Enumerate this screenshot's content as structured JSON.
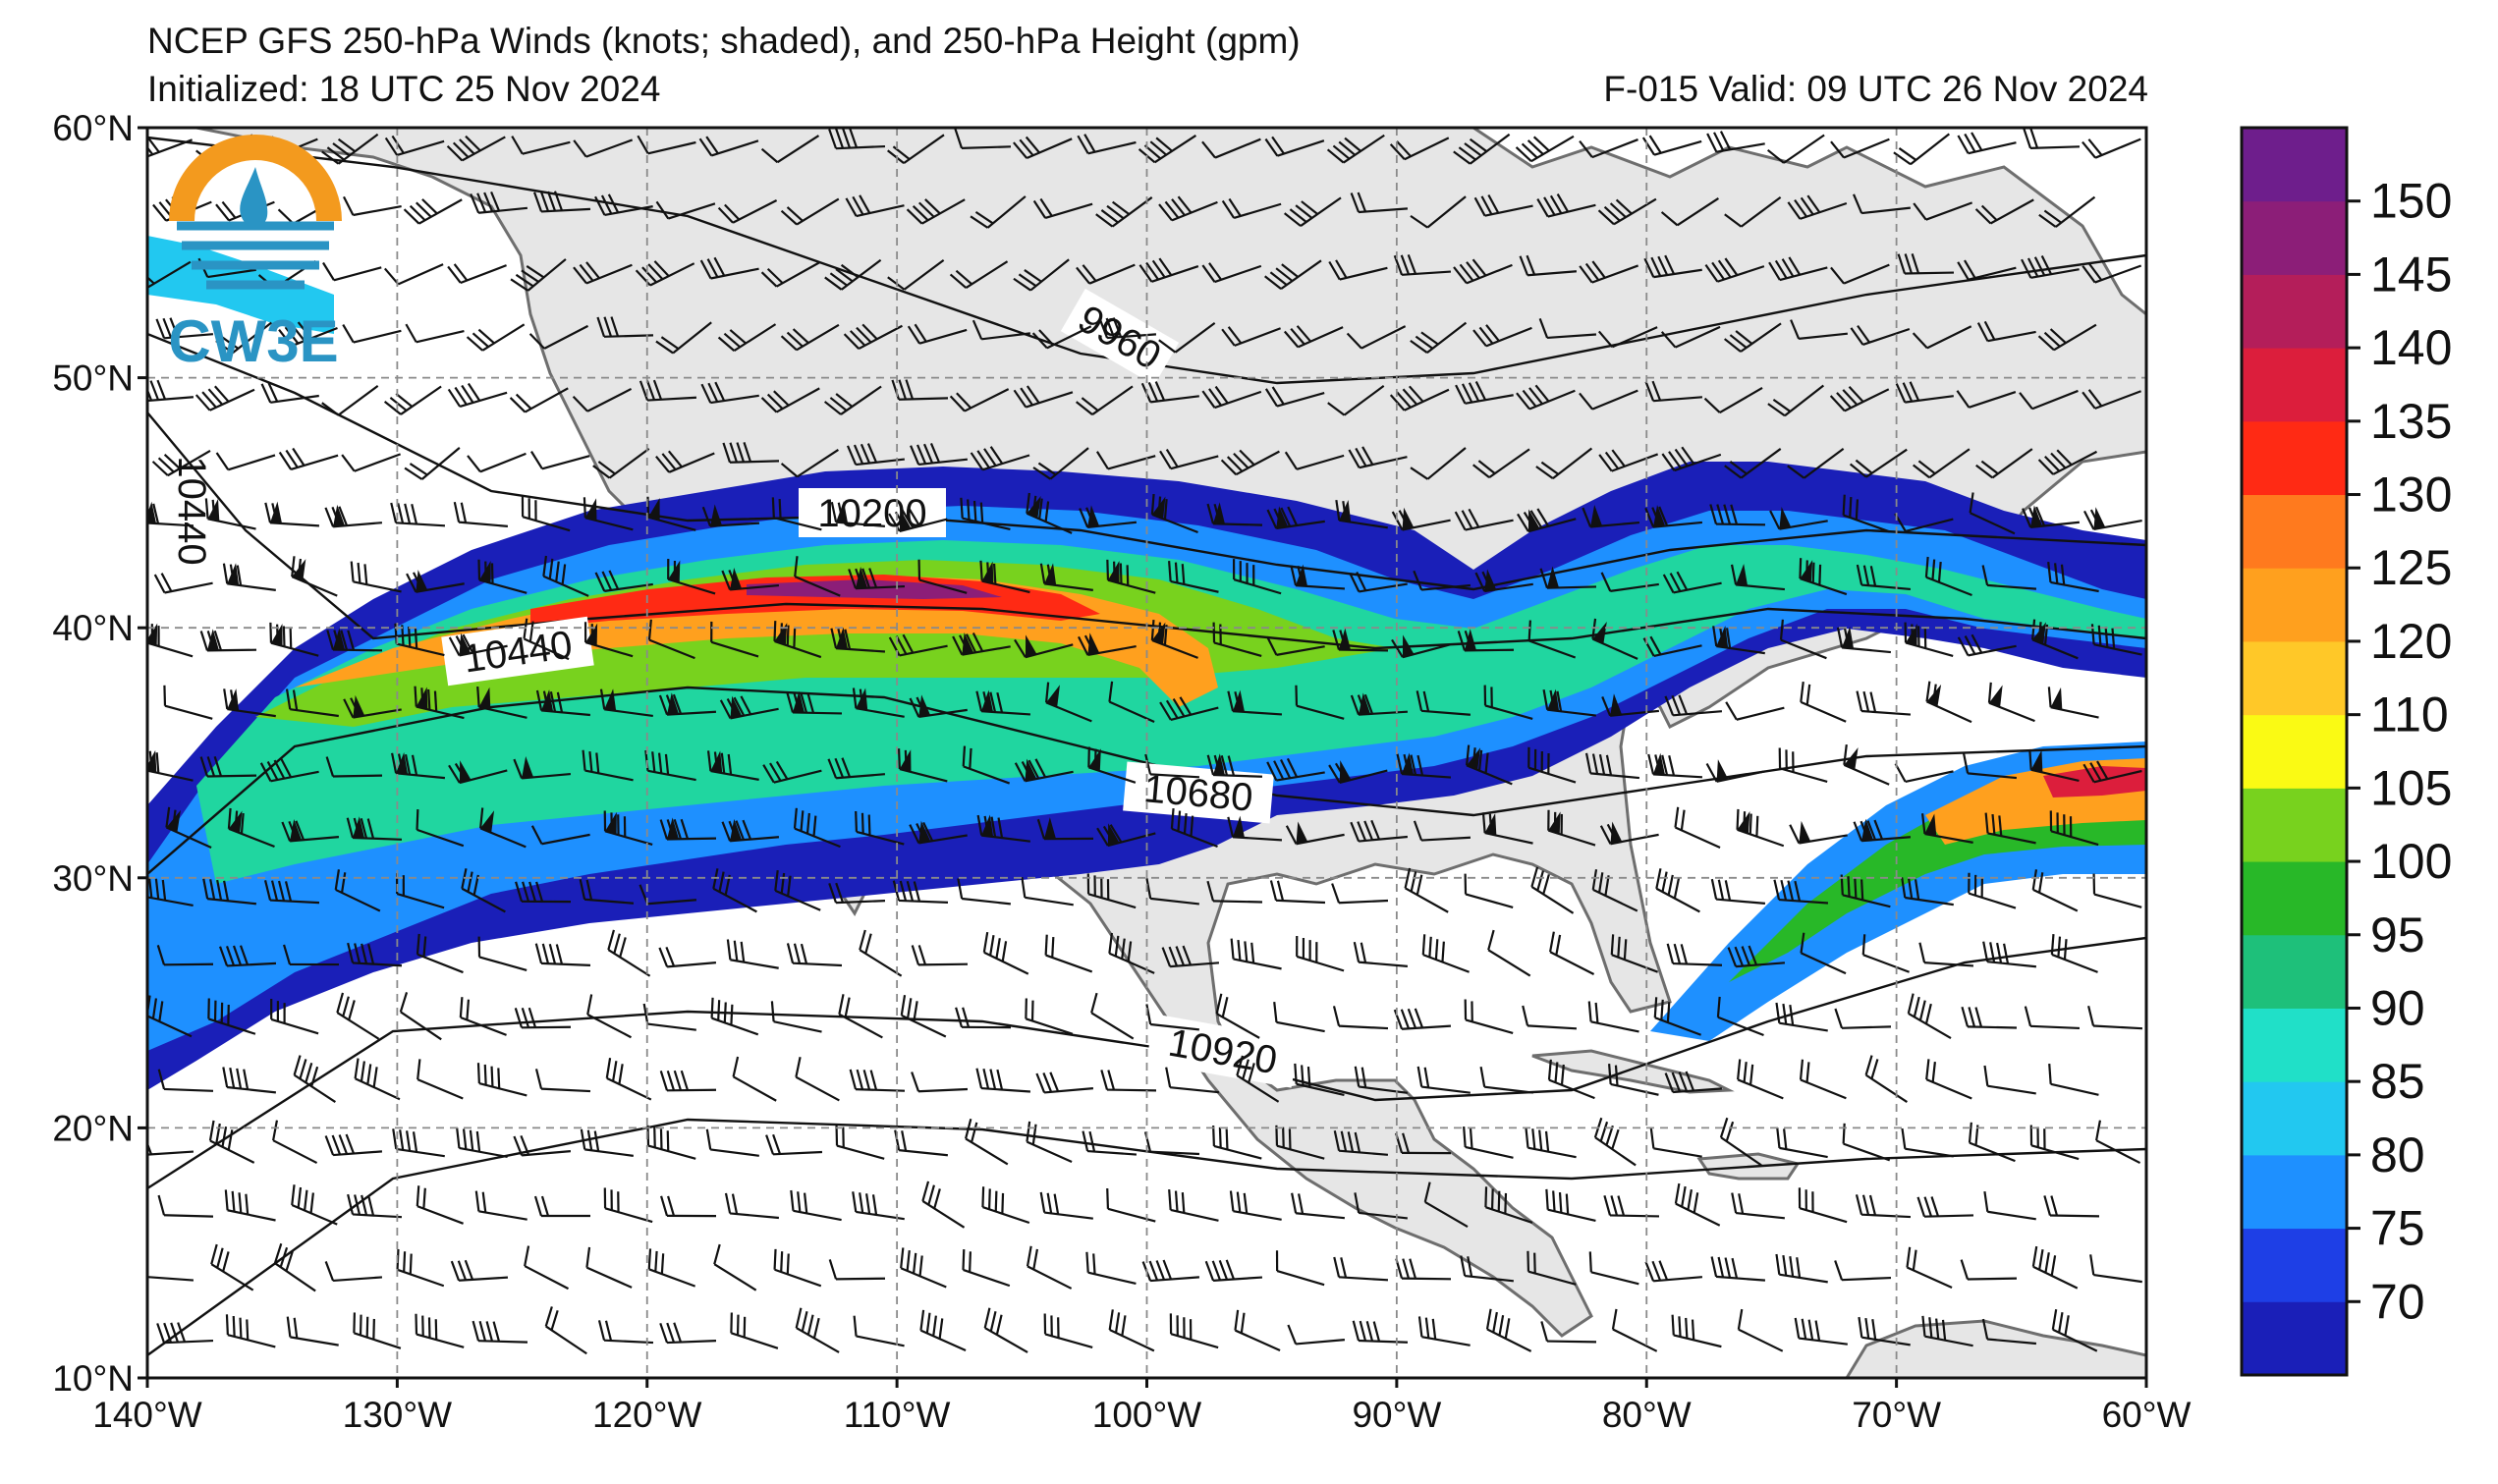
{
  "header": {
    "title": "NCEP GFS 250-hPa Winds (knots; shaded), and 250-hPa Height (gpm)",
    "initialized": "Initialized: 18 UTC 25 Nov 2024",
    "valid": "F-015  Valid: 09 UTC 26 Nov 2024"
  },
  "logo": {
    "text": "CW3E",
    "colors": {
      "ring": "#f39a1e",
      "body": "#2a94c4",
      "text": "#2a94c4"
    }
  },
  "axes": {
    "lat_labels": [
      "60°N",
      "50°N",
      "40°N",
      "30°N",
      "20°N",
      "10°N"
    ],
    "lon_labels": [
      "140°W",
      "130°W",
      "120°W",
      "110°W",
      "100°W",
      "90°W",
      "80°W",
      "70°W",
      "60°W"
    ],
    "lat_range": [
      10,
      60
    ],
    "lon_range": [
      -140,
      -60
    ],
    "grid": true
  },
  "colorbar": {
    "labels": [
      "150",
      "145",
      "140",
      "135",
      "130",
      "125",
      "120",
      "110",
      "105",
      "100",
      "95",
      "90",
      "85",
      "80",
      "75",
      "70"
    ],
    "colors": [
      "#1a1fb8",
      "#1e3fe6",
      "#1e90ff",
      "#22c8f0",
      "#20e0c8",
      "#1ec07a",
      "#28b828",
      "#78d21e",
      "#fafa14",
      "#ffc828",
      "#ffa01e",
      "#ff7a1e",
      "#ff2a14",
      "#dc1e3c",
      "#b41e5a",
      "#8c1e78",
      "#6e1e8c"
    ]
  },
  "contours": {
    "labels": [
      "9960",
      "10200",
      "10440",
      "10440",
      "10680",
      "10920"
    ]
  }
}
